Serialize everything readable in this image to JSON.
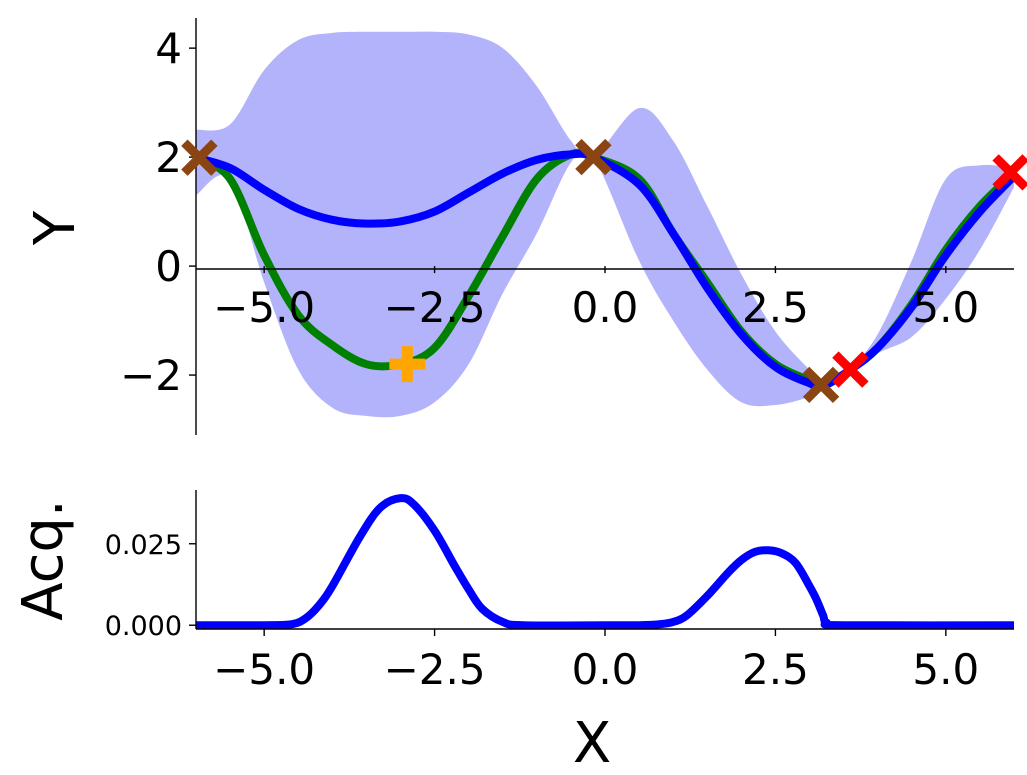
{
  "chart_data": [
    {
      "type": "line",
      "panel": "top",
      "ylabel": "Y",
      "xlim": [
        -6.0,
        6.0
      ],
      "ylim": [
        -3.1,
        4.7
      ],
      "x_ticks": [
        -5.0,
        -2.5,
        0.0,
        2.5,
        5.0
      ],
      "x_tick_labels": [
        "−5.0",
        "−2.5",
        "0.0",
        "2.5",
        "5.0"
      ],
      "y_ticks": [
        -2,
        0,
        2,
        4
      ],
      "y_tick_labels": [
        "−2",
        "0",
        "2",
        "4"
      ],
      "grid": false,
      "colors": {
        "confidence_band": "#b3b3fb",
        "mean": "#0000ff",
        "true_function": "#008000",
        "observed": "#8b4513",
        "proposed": "#ff0000",
        "optimum": "#ffa500"
      },
      "x": [
        -6.0,
        -5.5,
        -5.0,
        -4.5,
        -4.0,
        -3.5,
        -3.0,
        -2.5,
        -2.0,
        -1.5,
        -1.0,
        -0.5,
        -0.17,
        0.5,
        1.0,
        1.5,
        2.0,
        2.5,
        3.0,
        3.2,
        3.6,
        4.0,
        4.5,
        5.0,
        5.5,
        6.0
      ],
      "series": [
        {
          "role": "true_function",
          "values": [
            1.99,
            1.6,
            0.2,
            -0.9,
            -1.45,
            -1.8,
            -1.8,
            -1.5,
            -0.55,
            0.55,
            1.6,
            2.05,
            2.0,
            1.6,
            0.6,
            -0.3,
            -1.2,
            -1.8,
            -2.1,
            -2.2,
            -1.9,
            -1.5,
            -0.7,
            0.3,
            1.1,
            1.7
          ]
        },
        {
          "role": "mean",
          "values": [
            1.99,
            1.8,
            1.4,
            1.05,
            0.85,
            0.78,
            0.82,
            1.0,
            1.35,
            1.7,
            1.95,
            2.05,
            2.0,
            1.5,
            0.6,
            -0.4,
            -1.25,
            -1.85,
            -2.15,
            -2.2,
            -1.9,
            -1.5,
            -0.75,
            0.2,
            1.0,
            1.65
          ]
        },
        {
          "role": "confidence_upper",
          "values": [
            2.5,
            2.6,
            3.6,
            4.15,
            4.28,
            4.3,
            4.3,
            4.3,
            4.25,
            4.0,
            3.3,
            2.3,
            2.0,
            2.9,
            2.3,
            1.1,
            -0.15,
            -1.2,
            -1.9,
            -2.1,
            -1.85,
            -1.25,
            0.1,
            1.6,
            1.85,
            1.8
          ]
        },
        {
          "role": "confidence_lower",
          "values": [
            1.3,
            1.6,
            -0.3,
            -1.9,
            -2.6,
            -2.75,
            -2.75,
            -2.5,
            -1.8,
            -0.5,
            0.6,
            1.9,
            2.0,
            0.1,
            -1.0,
            -1.9,
            -2.5,
            -2.55,
            -2.4,
            -2.25,
            -1.95,
            -1.6,
            -1.3,
            -0.6,
            0.3,
            1.45
          ]
        }
      ],
      "markers": [
        {
          "role": "observed",
          "symbol": "x",
          "x": -5.95,
          "y": 1.99
        },
        {
          "role": "observed",
          "symbol": "x",
          "x": -0.17,
          "y": 2.0
        },
        {
          "role": "observed",
          "symbol": "x",
          "x": 3.17,
          "y": -2.18
        },
        {
          "role": "proposed",
          "symbol": "x",
          "x": 3.6,
          "y": -1.9
        },
        {
          "role": "proposed",
          "symbol": "x",
          "x": 5.95,
          "y": 1.72
        },
        {
          "role": "optimum",
          "symbol": "+",
          "x": -2.9,
          "y": -1.8
        }
      ]
    },
    {
      "type": "line",
      "panel": "bottom",
      "xlabel": "X",
      "ylabel": "Acq.",
      "xlim": [
        -6.0,
        6.0
      ],
      "ylim": [
        -0.003,
        0.0415
      ],
      "x_ticks": [
        -5.0,
        -2.5,
        0.0,
        2.5,
        5.0
      ],
      "x_tick_labels": [
        "−5.0",
        "−2.5",
        "0.0",
        "2.5",
        "5.0"
      ],
      "y_ticks": [
        0.0,
        0.025
      ],
      "y_tick_labels": [
        "0.000",
        "0.025"
      ],
      "grid": false,
      "colors": {
        "acquisition": "#0000ff"
      },
      "x": [
        -6.0,
        -5.0,
        -4.6,
        -4.4,
        -4.2,
        -4.0,
        -3.6,
        -3.3,
        -3.0,
        -2.8,
        -2.5,
        -2.2,
        -2.0,
        -1.8,
        -1.5,
        -1.2,
        0.0,
        0.5,
        0.8,
        1.0,
        1.2,
        1.5,
        1.8,
        2.0,
        2.2,
        2.4,
        2.6,
        2.8,
        3.0,
        3.1,
        3.2,
        3.25,
        3.5,
        6.0
      ],
      "series": [
        {
          "role": "acquisition",
          "values": [
            0.0,
            0.0,
            0.0003,
            0.002,
            0.006,
            0.012,
            0.027,
            0.036,
            0.039,
            0.037,
            0.029,
            0.018,
            0.011,
            0.005,
            0.001,
            0.0,
            0.0,
            0.0,
            0.0003,
            0.001,
            0.003,
            0.009,
            0.016,
            0.02,
            0.0225,
            0.023,
            0.022,
            0.019,
            0.012,
            0.008,
            0.003,
            0.0008,
            0.0,
            0.0
          ]
        }
      ]
    }
  ]
}
